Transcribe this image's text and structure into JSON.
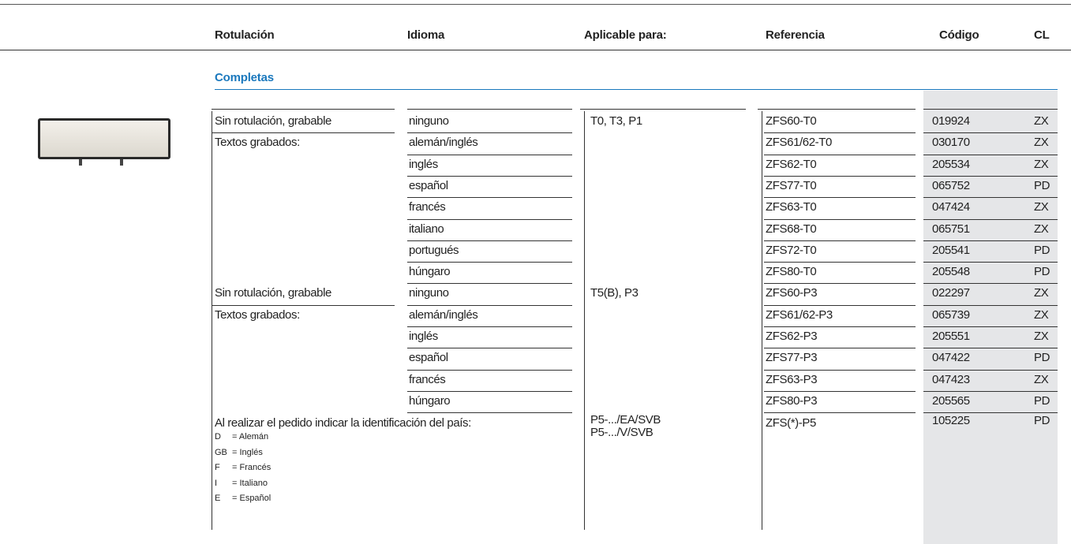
{
  "header": {
    "columns": [
      "Rotulación",
      "Idioma",
      "Aplicable para:",
      "Referencia",
      "Código",
      "CL"
    ]
  },
  "section": "Completas",
  "groups": [
    {
      "rotulacion": [
        "Sin rotulación, grabable",
        "Textos grabados:"
      ],
      "aplicable": [
        "T0, T3, P1"
      ],
      "rows": [
        {
          "idioma": "ninguno",
          "referencia": "ZFS60-T0",
          "codigo": "019924",
          "cl": "ZX"
        },
        {
          "idioma": "alemán/inglés",
          "referencia": "ZFS61/62-T0",
          "codigo": "030170",
          "cl": "ZX"
        },
        {
          "idioma": "inglés",
          "referencia": "ZFS62-T0",
          "codigo": "205534",
          "cl": "ZX"
        },
        {
          "idioma": "español",
          "referencia": "ZFS77-T0",
          "codigo": "065752",
          "cl": "PD"
        },
        {
          "idioma": "francés",
          "referencia": "ZFS63-T0",
          "codigo": "047424",
          "cl": "ZX"
        },
        {
          "idioma": "italiano",
          "referencia": "ZFS68-T0",
          "codigo": "065751",
          "cl": "ZX"
        },
        {
          "idioma": "portugués",
          "referencia": "ZFS72-T0",
          "codigo": "205541",
          "cl": "PD"
        },
        {
          "idioma": "húngaro",
          "referencia": "ZFS80-T0",
          "codigo": "205548",
          "cl": "PD"
        }
      ]
    },
    {
      "rotulacion": [
        "Sin rotulación, grabable",
        "Textos grabados:"
      ],
      "aplicable": [
        "T5(B), P3"
      ],
      "rows": [
        {
          "idioma": "ninguno",
          "referencia": "ZFS60-P3",
          "codigo": "022297",
          "cl": "ZX"
        },
        {
          "idioma": "alemán/inglés",
          "referencia": "ZFS61/62-P3",
          "codigo": "065739",
          "cl": "ZX"
        },
        {
          "idioma": "inglés",
          "referencia": "ZFS62-P3",
          "codigo": "205551",
          "cl": "ZX"
        },
        {
          "idioma": "español",
          "referencia": "ZFS77-P3",
          "codigo": "047422",
          "cl": "PD"
        },
        {
          "idioma": "francés",
          "referencia": "ZFS63-P3",
          "codigo": "047423",
          "cl": "ZX"
        },
        {
          "idioma": "húngaro",
          "referencia": "ZFS80-P3",
          "codigo": "205565",
          "cl": "PD"
        }
      ]
    }
  ],
  "footer": {
    "note": "Al realizar el pedido indicar la identificación del país:",
    "countries": [
      {
        "code": "D",
        "name": "= Alemán"
      },
      {
        "code": "GB",
        "name": "= Inglés"
      },
      {
        "code": "F",
        "name": "= Francés"
      },
      {
        "code": "I",
        "name": "= Italiano"
      },
      {
        "code": "E",
        "name": "= Español"
      }
    ],
    "aplicable": [
      "P5-.../EA/SVB",
      "P5-.../V/SVB"
    ],
    "referencia": "ZFS(*)-P5",
    "codigo": "105225",
    "cl": "PD"
  }
}
